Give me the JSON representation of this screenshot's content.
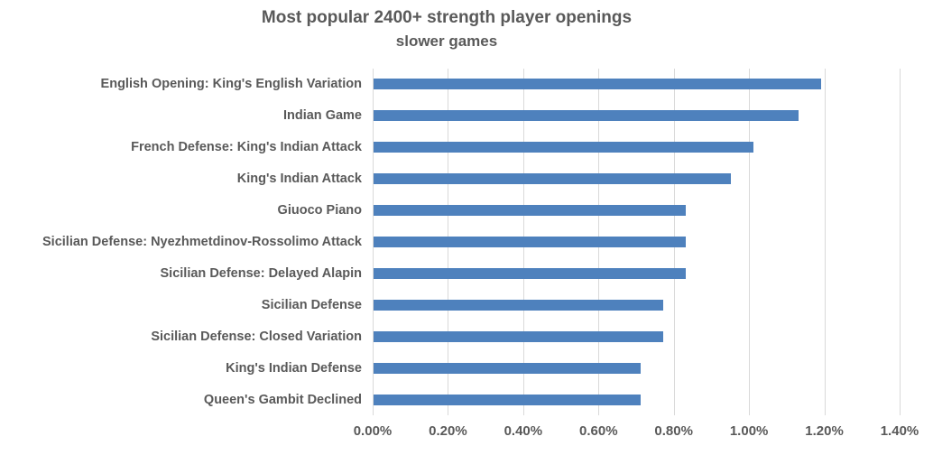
{
  "colors": {
    "bar": "#4e81bd",
    "gridline": "#d9d9d9",
    "text": "#595959",
    "background": "#ffffff"
  },
  "chart_data": {
    "type": "bar",
    "orientation": "horizontal",
    "title": "Most popular 2400+ strength player openings",
    "subtitle": "slower games",
    "categories": [
      "English Opening: King's English Variation",
      "Indian Game",
      "French Defense: King's Indian Attack",
      "King's Indian Attack",
      "Giuoco Piano",
      "Sicilian Defense: Nyezhmetdinov-Rossolimo Attack",
      "Sicilian Defense: Delayed Alapin",
      "Sicilian Defense",
      "Sicilian Defense: Closed Variation",
      "King's Indian Defense",
      "Queen's Gambit Declined"
    ],
    "values": [
      1.19,
      1.13,
      1.01,
      0.95,
      0.83,
      0.83,
      0.83,
      0.77,
      0.77,
      0.71,
      0.71
    ],
    "unit": "%",
    "xlim": [
      0,
      1.4
    ],
    "x_ticks": [
      "0.00%",
      "0.20%",
      "0.40%",
      "0.60%",
      "0.80%",
      "1.00%",
      "1.20%",
      "1.40%"
    ],
    "x_tick_values": [
      0,
      0.2,
      0.4,
      0.6,
      0.8,
      1.0,
      1.2,
      1.4
    ],
    "grid": "vertical",
    "legend": false,
    "xlabel": "",
    "ylabel": ""
  }
}
